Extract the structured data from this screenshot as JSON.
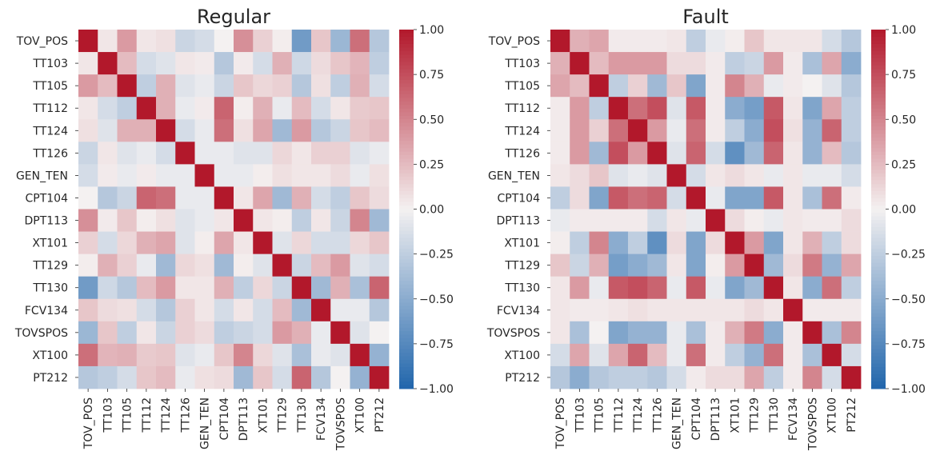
{
  "chart_data": [
    {
      "type": "heatmap",
      "title": "Regular",
      "labels": [
        "TOV_POS",
        "TT103",
        "TT105",
        "TT112",
        "TT124",
        "TT126",
        "GEN_TEN",
        "CPT104",
        "DPT113",
        "XT101",
        "TT129",
        "TT130",
        "FCV134",
        "TOVSPOS",
        "XT100",
        "PT212"
      ],
      "values": [
        [
          1.0,
          0.05,
          0.4,
          0.05,
          0.08,
          -0.2,
          -0.15,
          0.0,
          0.45,
          0.15,
          0.02,
          -0.62,
          0.2,
          -0.42,
          0.6,
          -0.3
        ],
        [
          0.05,
          1.0,
          0.25,
          -0.15,
          -0.1,
          0.05,
          0.03,
          -0.3,
          0.03,
          -0.15,
          0.3,
          -0.18,
          0.1,
          0.2,
          0.28,
          -0.25
        ],
        [
          0.4,
          0.25,
          1.0,
          -0.25,
          0.3,
          -0.1,
          -0.05,
          -0.2,
          0.2,
          0.12,
          0.15,
          -0.3,
          0.08,
          -0.25,
          0.3,
          -0.15
        ],
        [
          0.05,
          -0.15,
          -0.25,
          1.0,
          0.3,
          -0.05,
          0.03,
          0.65,
          0.02,
          0.3,
          -0.05,
          0.25,
          -0.15,
          0.05,
          0.18,
          0.2
        ],
        [
          0.08,
          -0.1,
          0.3,
          0.3,
          1.0,
          -0.15,
          -0.05,
          0.6,
          0.08,
          0.35,
          -0.4,
          0.4,
          -0.3,
          -0.2,
          0.2,
          0.25
        ],
        [
          -0.2,
          0.05,
          -0.1,
          -0.05,
          -0.15,
          1.0,
          -0.05,
          -0.05,
          -0.1,
          -0.1,
          0.12,
          0.05,
          0.15,
          0.15,
          -0.1,
          -0.05
        ],
        [
          -0.15,
          0.03,
          -0.05,
          0.03,
          -0.05,
          -0.05,
          1.0,
          -0.05,
          -0.05,
          0.02,
          0.08,
          0.05,
          0.05,
          0.1,
          -0.05,
          0.08
        ],
        [
          0.0,
          -0.3,
          -0.2,
          0.65,
          0.6,
          -0.05,
          -0.05,
          1.0,
          0.05,
          0.35,
          -0.4,
          0.3,
          -0.15,
          -0.25,
          0.2,
          0.1
        ],
        [
          0.45,
          0.03,
          0.2,
          0.02,
          0.08,
          -0.1,
          -0.05,
          0.05,
          1.0,
          0.05,
          0.02,
          -0.25,
          0.05,
          -0.2,
          0.5,
          -0.4
        ],
        [
          0.15,
          -0.15,
          0.12,
          0.3,
          0.35,
          -0.1,
          0.02,
          0.35,
          0.05,
          1.0,
          -0.1,
          0.12,
          -0.15,
          -0.15,
          0.12,
          0.2
        ],
        [
          0.02,
          0.3,
          0.15,
          -0.05,
          -0.4,
          0.12,
          0.08,
          -0.4,
          0.02,
          -0.1,
          1.0,
          -0.2,
          0.25,
          0.4,
          -0.1,
          -0.15
        ],
        [
          -0.62,
          -0.18,
          -0.3,
          0.25,
          0.4,
          0.05,
          0.05,
          0.3,
          -0.25,
          0.12,
          -0.2,
          1.0,
          -0.4,
          0.3,
          -0.35,
          0.65
        ],
        [
          0.2,
          0.1,
          0.08,
          -0.15,
          -0.3,
          0.15,
          0.05,
          -0.15,
          0.05,
          -0.15,
          0.25,
          -0.4,
          1.0,
          -0.05,
          -0.05,
          -0.3
        ],
        [
          -0.42,
          0.2,
          -0.25,
          0.05,
          -0.2,
          0.15,
          0.1,
          -0.25,
          -0.2,
          -0.15,
          0.4,
          0.3,
          -0.05,
          1.0,
          -0.1,
          0.0
        ],
        [
          0.6,
          0.28,
          0.3,
          0.18,
          0.2,
          -0.1,
          -0.05,
          0.2,
          0.5,
          0.12,
          -0.1,
          -0.35,
          -0.05,
          -0.1,
          1.0,
          -0.45
        ],
        [
          -0.3,
          -0.25,
          -0.15,
          0.2,
          0.25,
          -0.05,
          0.08,
          0.1,
          -0.4,
          0.2,
          -0.15,
          0.65,
          -0.3,
          0.0,
          -0.45,
          1.0
        ]
      ],
      "colorbar": {
        "min": -1.0,
        "max": 1.0,
        "ticks": [
          "1.00",
          "0.75",
          "0.50",
          "0.25",
          "0.00",
          "−0.25",
          "−0.50",
          "−0.75",
          "−1.00"
        ]
      }
    },
    {
      "type": "heatmap",
      "title": "Fault",
      "labels": [
        "TOV_POS",
        "TT103",
        "TT105",
        "TT112",
        "TT124",
        "TT126",
        "GEN_TEN",
        "CPT104",
        "DPT113",
        "XT101",
        "TT129",
        "TT130",
        "FCV134",
        "TOVSPOS",
        "XT100",
        "PT212"
      ],
      "values": [
        [
          1.0,
          0.3,
          0.35,
          0.03,
          0.03,
          0.03,
          0.05,
          -0.25,
          -0.05,
          0.02,
          0.2,
          0.05,
          0.05,
          0.05,
          -0.15,
          -0.3
        ],
        [
          0.3,
          1.0,
          0.25,
          0.4,
          0.4,
          0.4,
          0.1,
          0.1,
          0.03,
          -0.25,
          -0.2,
          0.4,
          0.03,
          -0.35,
          0.35,
          -0.5
        ],
        [
          0.35,
          0.25,
          1.0,
          -0.25,
          0.15,
          -0.4,
          0.2,
          -0.55,
          0.03,
          0.5,
          0.3,
          -0.05,
          0.03,
          0.0,
          -0.1,
          -0.3
        ],
        [
          0.03,
          0.4,
          -0.25,
          1.0,
          0.6,
          0.75,
          -0.1,
          0.7,
          0.03,
          -0.5,
          -0.6,
          0.7,
          0.05,
          -0.55,
          0.35,
          -0.25
        ],
        [
          0.03,
          0.4,
          0.15,
          0.6,
          1.0,
          0.4,
          -0.05,
          0.6,
          0.03,
          -0.25,
          -0.5,
          0.75,
          0.08,
          -0.45,
          0.65,
          -0.25
        ],
        [
          0.03,
          0.4,
          -0.4,
          0.75,
          0.4,
          1.0,
          -0.1,
          0.65,
          -0.15,
          -0.7,
          -0.4,
          0.65,
          0.05,
          -0.45,
          0.25,
          -0.3
        ],
        [
          0.05,
          0.1,
          0.2,
          -0.1,
          -0.05,
          -0.1,
          1.0,
          -0.15,
          0.05,
          0.1,
          0.05,
          -0.05,
          0.05,
          -0.05,
          -0.05,
          -0.15
        ],
        [
          -0.25,
          0.1,
          -0.55,
          0.7,
          0.6,
          0.65,
          -0.15,
          1.0,
          -0.05,
          -0.55,
          -0.55,
          0.7,
          0.05,
          -0.35,
          0.6,
          0.03
        ],
        [
          -0.05,
          0.03,
          0.03,
          0.03,
          0.03,
          -0.15,
          0.05,
          -0.05,
          1.0,
          0.1,
          0.02,
          -0.05,
          0.05,
          0.03,
          0.03,
          0.1
        ],
        [
          0.02,
          -0.25,
          0.5,
          -0.5,
          -0.25,
          -0.7,
          0.1,
          -0.55,
          0.1,
          1.0,
          0.4,
          -0.55,
          0.05,
          0.3,
          -0.25,
          0.1
        ],
        [
          0.2,
          -0.2,
          0.3,
          -0.6,
          -0.5,
          -0.4,
          0.05,
          -0.55,
          0.02,
          0.4,
          1.0,
          -0.4,
          0.1,
          0.55,
          -0.45,
          0.35
        ],
        [
          0.05,
          0.4,
          -0.05,
          0.7,
          0.75,
          0.65,
          -0.05,
          0.7,
          -0.05,
          -0.55,
          -0.4,
          1.0,
          0.05,
          -0.5,
          0.6,
          -0.25
        ],
        [
          0.05,
          0.03,
          0.03,
          0.05,
          0.08,
          0.05,
          0.05,
          0.05,
          0.05,
          0.05,
          0.1,
          0.05,
          1.0,
          0.03,
          0.03,
          0.03
        ],
        [
          0.05,
          -0.35,
          0.0,
          -0.55,
          -0.45,
          -0.45,
          -0.05,
          -0.35,
          0.03,
          0.3,
          0.55,
          -0.5,
          0.03,
          1.0,
          -0.35,
          0.5
        ],
        [
          -0.15,
          0.35,
          -0.1,
          0.35,
          0.65,
          0.25,
          -0.05,
          0.6,
          0.03,
          -0.25,
          -0.45,
          0.6,
          0.03,
          -0.35,
          1.0,
          -0.15
        ],
        [
          -0.3,
          -0.5,
          -0.3,
          -0.25,
          -0.25,
          -0.3,
          -0.15,
          0.03,
          0.1,
          0.1,
          0.35,
          -0.25,
          0.03,
          0.5,
          -0.15,
          1.0
        ]
      ],
      "colorbar": {
        "min": -1.0,
        "max": 1.0,
        "ticks": [
          "1.00",
          "0.75",
          "0.50",
          "0.25",
          "0.00",
          "−0.25",
          "−0.50",
          "−0.75",
          "−1.00"
        ]
      }
    }
  ],
  "colormap": {
    "low": "#2166ac",
    "mid": "#f4f1f1",
    "high": "#b2182b"
  }
}
